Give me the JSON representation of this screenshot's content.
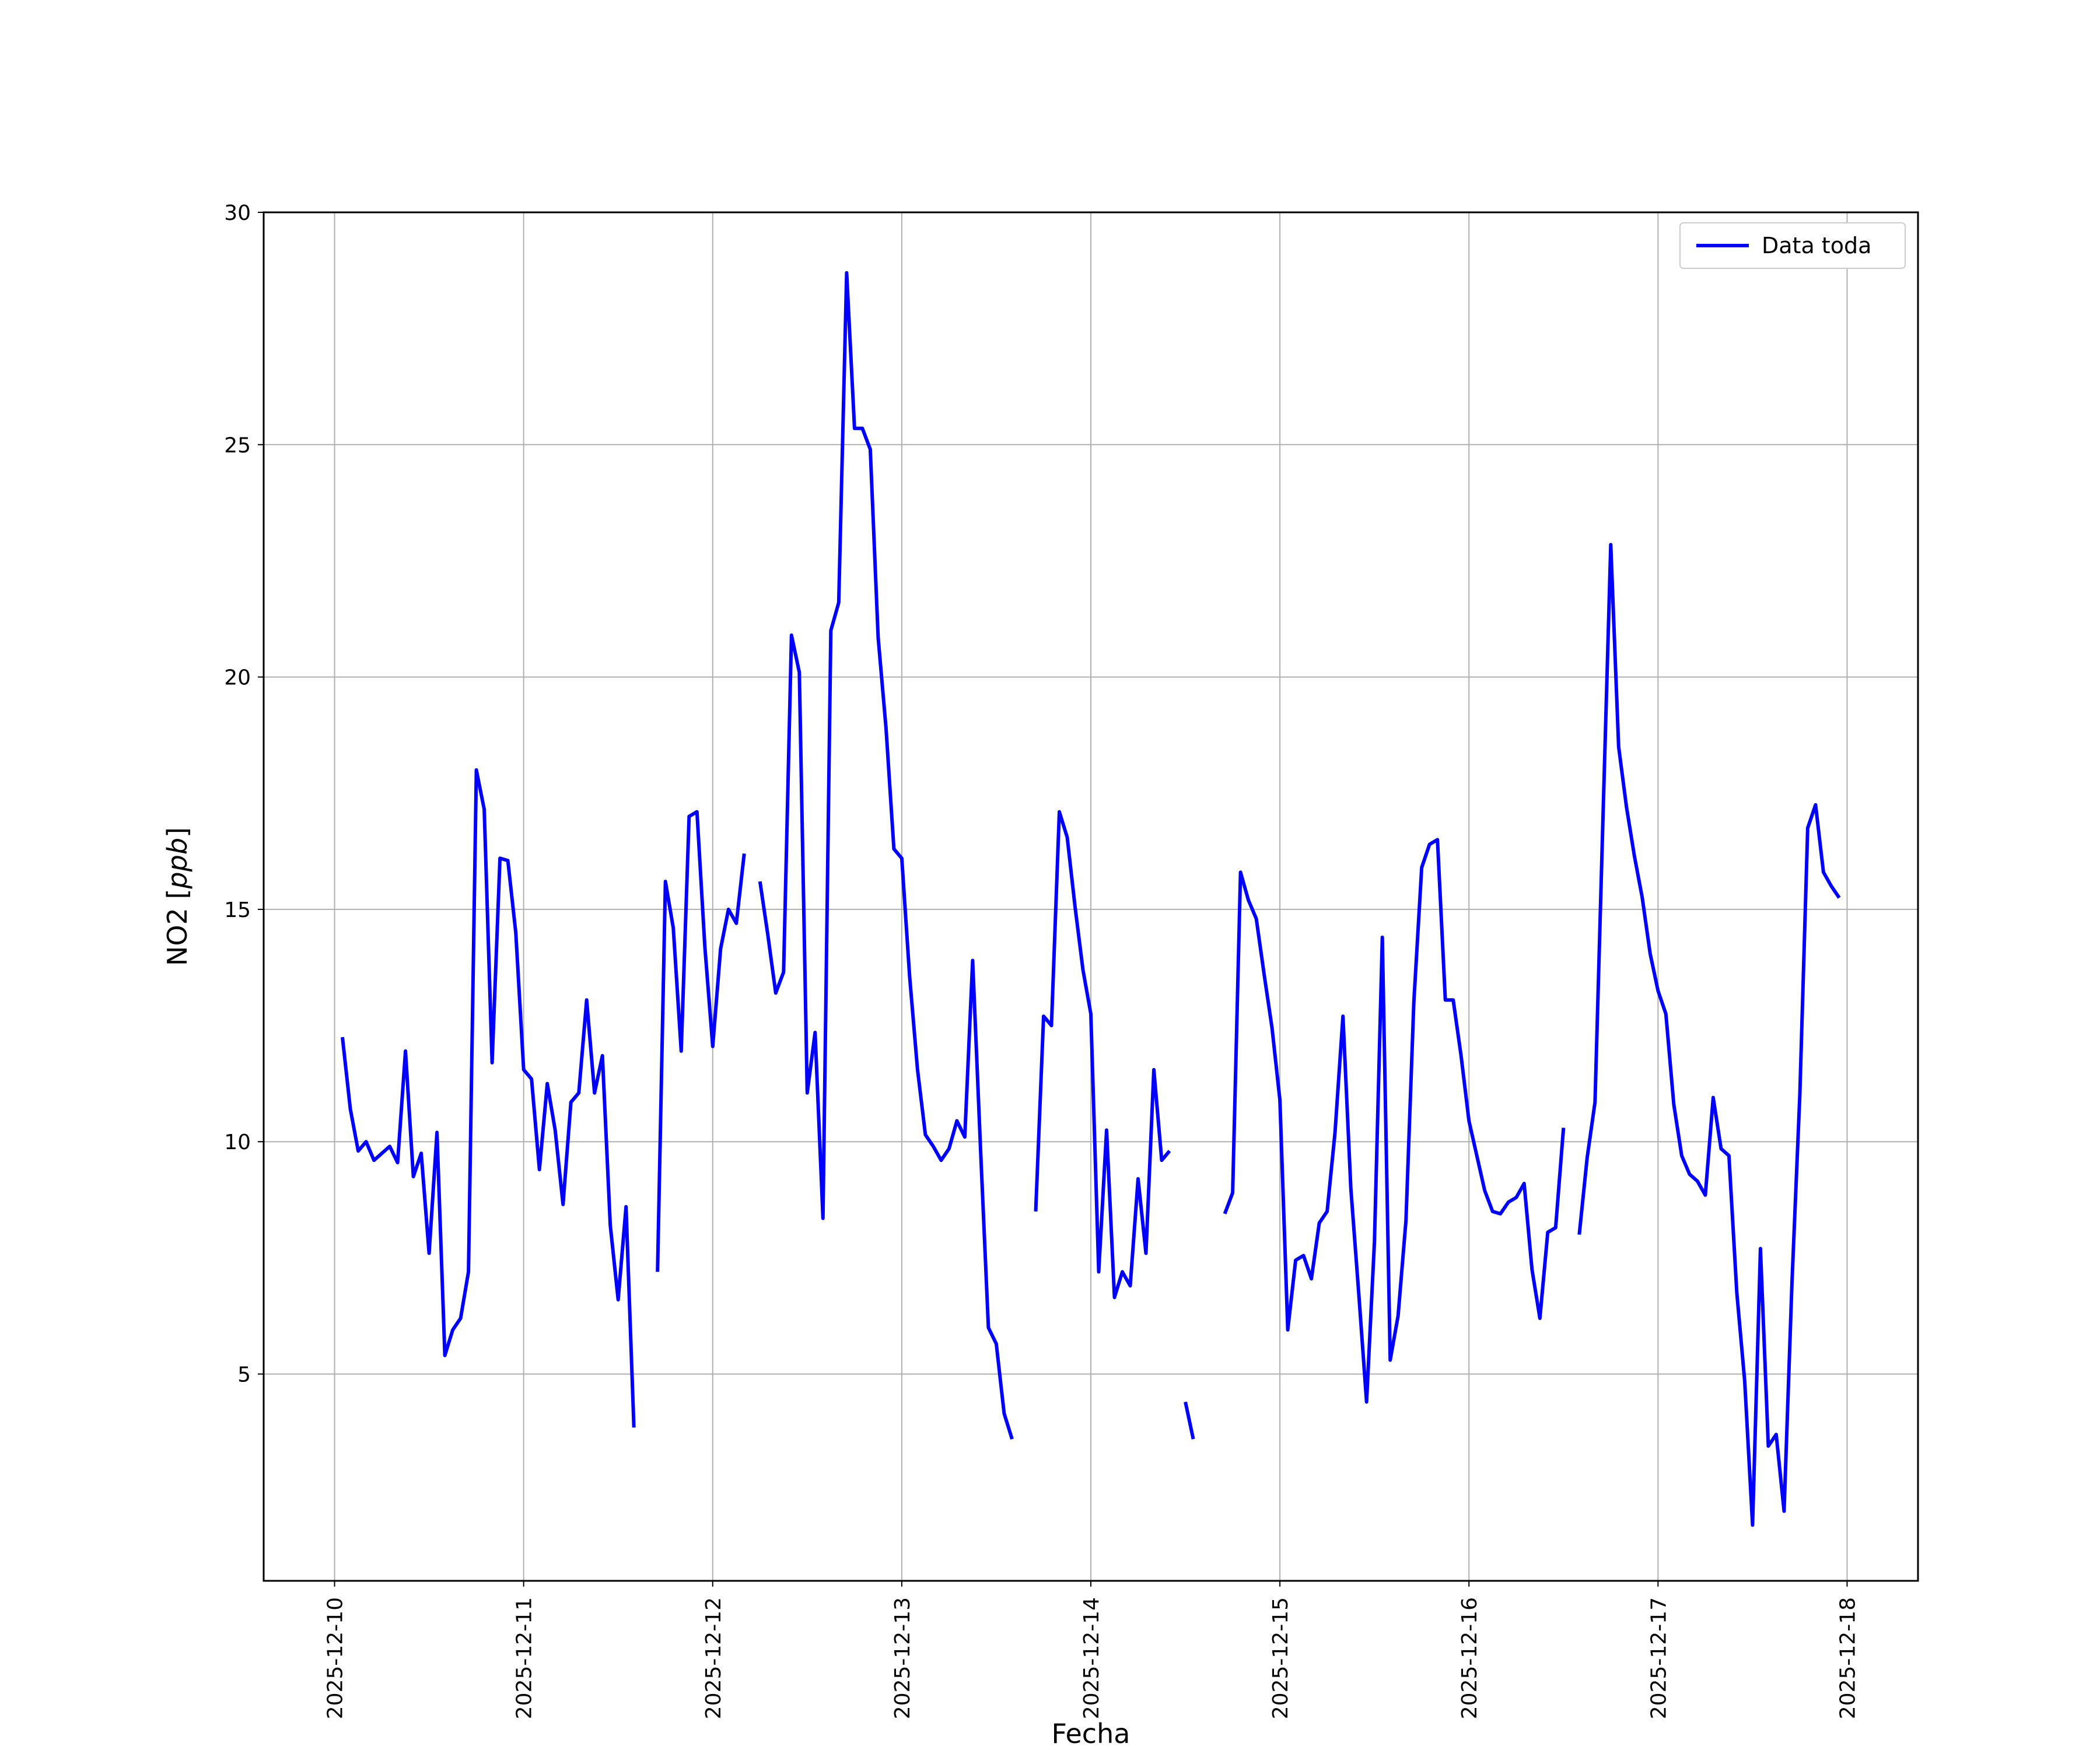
{
  "chart_data": {
    "type": "line",
    "title": "",
    "xlabel": "Fecha",
    "ylabel": "NO2 [ppb]",
    "ylabel_parts": {
      "plain": "NO2 [",
      "italic": "ppb",
      "close": "]"
    },
    "grid": true,
    "legend_position": "top-right",
    "x_unit": "date",
    "xlim": [
      "2025-12-09T15:00",
      "2025-12-18T09:00"
    ],
    "ylim": [
      0.55,
      30
    ],
    "x_ticks": [
      "2025-12-10",
      "2025-12-11",
      "2025-12-12",
      "2025-12-13",
      "2025-12-14",
      "2025-12-15",
      "2025-12-16",
      "2025-12-17",
      "2025-12-18"
    ],
    "y_ticks": [
      5,
      10,
      15,
      20,
      25,
      30
    ],
    "series": [
      {
        "name": "Data toda",
        "color": "#0000ff",
        "x": [
          "2025-12-10T01:00",
          "2025-12-10T02:00",
          "2025-12-10T03:00",
          "2025-12-10T04:00",
          "2025-12-10T05:00",
          "2025-12-10T06:00",
          "2025-12-10T07:00",
          "2025-12-10T08:00",
          "2025-12-10T09:00",
          "2025-12-10T10:00",
          "2025-12-10T11:00",
          "2025-12-10T12:00",
          "2025-12-10T13:00",
          "2025-12-10T14:00",
          "2025-12-10T15:00",
          "2025-12-10T16:00",
          "2025-12-10T17:00",
          "2025-12-10T18:00",
          "2025-12-10T19:00",
          "2025-12-10T20:00",
          "2025-12-10T21:00",
          "2025-12-10T22:00",
          "2025-12-10T23:00",
          "2025-12-11T00:00",
          "2025-12-11T01:00",
          "2025-12-11T02:00",
          "2025-12-11T03:00",
          "2025-12-11T04:00",
          "2025-12-11T05:00",
          "2025-12-11T06:00",
          "2025-12-11T07:00",
          "2025-12-11T08:00",
          "2025-12-11T09:00",
          "2025-12-11T10:00",
          "2025-12-11T11:00",
          "2025-12-11T12:00",
          "2025-12-11T13:00",
          "2025-12-11T14:00",
          "2025-12-11T15:00",
          "2025-12-11T16:00",
          "2025-12-11T17:00",
          "2025-12-11T18:00",
          "2025-12-11T19:00",
          "2025-12-11T20:00",
          "2025-12-11T21:00",
          "2025-12-11T22:00",
          "2025-12-11T23:00",
          "2025-12-12T00:00",
          "2025-12-12T01:00",
          "2025-12-12T02:00",
          "2025-12-12T03:00",
          "2025-12-12T04:00",
          "2025-12-12T05:00",
          "2025-12-12T06:00",
          "2025-12-12T07:00",
          "2025-12-12T08:00",
          "2025-12-12T09:00",
          "2025-12-12T10:00",
          "2025-12-12T11:00",
          "2025-12-12T12:00",
          "2025-12-12T13:00",
          "2025-12-12T14:00",
          "2025-12-12T15:00",
          "2025-12-12T16:00",
          "2025-12-12T17:00",
          "2025-12-12T18:00",
          "2025-12-12T19:00",
          "2025-12-12T20:00",
          "2025-12-12T21:00",
          "2025-12-12T22:00",
          "2025-12-12T23:00",
          "2025-12-13T00:00",
          "2025-12-13T01:00",
          "2025-12-13T02:00",
          "2025-12-13T03:00",
          "2025-12-13T04:00",
          "2025-12-13T05:00",
          "2025-12-13T06:00",
          "2025-12-13T07:00",
          "2025-12-13T08:00",
          "2025-12-13T09:00",
          "2025-12-13T10:00",
          "2025-12-13T11:00",
          "2025-12-13T12:00",
          "2025-12-13T13:00",
          "2025-12-13T14:00",
          "2025-12-13T15:00",
          "2025-12-13T16:00",
          "2025-12-13T17:00",
          "2025-12-13T18:00",
          "2025-12-13T19:00",
          "2025-12-13T20:00",
          "2025-12-13T21:00",
          "2025-12-13T22:00",
          "2025-12-13T23:00",
          "2025-12-14T00:00",
          "2025-12-14T01:00",
          "2025-12-14T02:00",
          "2025-12-14T03:00",
          "2025-12-14T04:00",
          "2025-12-14T05:00",
          "2025-12-14T06:00",
          "2025-12-14T07:00",
          "2025-12-14T08:00",
          "2025-12-14T09:00",
          "2025-12-14T10:00",
          "2025-12-14T11:00",
          "2025-12-14T12:00",
          "2025-12-14T13:00",
          "2025-12-14T14:00",
          "2025-12-14T15:00",
          "2025-12-14T16:00",
          "2025-12-14T17:00",
          "2025-12-14T18:00",
          "2025-12-14T19:00",
          "2025-12-14T20:00",
          "2025-12-14T21:00",
          "2025-12-14T22:00",
          "2025-12-14T23:00",
          "2025-12-15T00:00",
          "2025-12-15T01:00",
          "2025-12-15T02:00",
          "2025-12-15T03:00",
          "2025-12-15T04:00",
          "2025-12-15T05:00",
          "2025-12-15T06:00",
          "2025-12-15T07:00",
          "2025-12-15T08:00",
          "2025-12-15T09:00",
          "2025-12-15T10:00",
          "2025-12-15T11:00",
          "2025-12-15T12:00",
          "2025-12-15T13:00",
          "2025-12-15T14:00",
          "2025-12-15T15:00",
          "2025-12-15T16:00",
          "2025-12-15T17:00",
          "2025-12-15T18:00",
          "2025-12-15T19:00",
          "2025-12-15T20:00",
          "2025-12-15T21:00",
          "2025-12-15T22:00",
          "2025-12-15T23:00",
          "2025-12-16T00:00",
          "2025-12-16T01:00",
          "2025-12-16T02:00",
          "2025-12-16T03:00",
          "2025-12-16T04:00",
          "2025-12-16T05:00",
          "2025-12-16T06:00",
          "2025-12-16T07:00",
          "2025-12-16T08:00",
          "2025-12-16T09:00",
          "2025-12-16T10:00",
          "2025-12-16T11:00",
          "2025-12-16T12:00",
          "2025-12-16T13:00",
          "2025-12-16T14:00",
          "2025-12-16T15:00",
          "2025-12-16T16:00",
          "2025-12-16T17:00",
          "2025-12-16T18:00",
          "2025-12-16T19:00",
          "2025-12-16T20:00",
          "2025-12-16T21:00",
          "2025-12-16T22:00",
          "2025-12-16T23:00",
          "2025-12-17T00:00",
          "2025-12-17T01:00",
          "2025-12-17T02:00",
          "2025-12-17T03:00",
          "2025-12-17T04:00",
          "2025-12-17T05:00",
          "2025-12-17T06:00",
          "2025-12-17T07:00",
          "2025-12-17T08:00",
          "2025-12-17T09:00",
          "2025-12-17T10:00",
          "2025-12-17T11:00",
          "2025-12-17T12:00",
          "2025-12-17T13:00",
          "2025-12-17T14:00",
          "2025-12-17T15:00",
          "2025-12-17T16:00",
          "2025-12-17T17:00",
          "2025-12-17T18:00",
          "2025-12-17T19:00",
          "2025-12-17T20:00",
          "2025-12-17T21:00",
          "2025-12-17T22:00",
          "2025-12-17T23:00",
          "2025-12-18T00:00"
        ],
        "values": [
          12.25,
          10.7,
          9.8,
          10.0,
          9.6,
          9.75,
          9.9,
          9.55,
          11.95,
          9.25,
          9.75,
          7.6,
          10.2,
          5.4,
          5.95,
          6.2,
          7.2,
          18.0,
          17.15,
          11.7,
          16.1,
          16.05,
          14.5,
          11.55,
          11.35,
          9.4,
          11.25,
          10.25,
          8.65,
          10.85,
          11.05,
          13.05,
          11.05,
          11.85,
          8.2,
          6.6,
          8.6,
          3.85,
          null,
          null,
          7.2,
          15.6,
          14.6,
          11.95,
          17.0,
          17.1,
          14.2,
          12.05,
          14.15,
          15.0,
          14.7,
          16.2,
          null,
          15.6,
          14.45,
          13.2,
          13.65,
          20.9,
          20.1,
          11.05,
          12.35,
          8.35,
          21.0,
          21.6,
          28.7,
          25.35,
          25.35,
          24.9,
          20.85,
          18.9,
          16.3,
          16.1,
          13.55,
          11.55,
          10.15,
          9.9,
          9.6,
          9.85,
          10.45,
          10.1,
          13.9,
          9.85,
          6.0,
          5.65,
          4.15,
          3.6,
          null,
          null,
          8.5,
          12.7,
          12.5,
          17.1,
          16.55,
          15.05,
          13.7,
          12.75,
          7.2,
          10.25,
          6.65,
          7.2,
          6.9,
          9.2,
          7.6,
          11.55,
          9.6,
          9.8,
          null,
          4.4,
          3.6,
          null,
          null,
          null,
          8.45,
          8.9,
          15.8,
          15.2,
          14.8,
          13.6,
          12.45,
          10.9,
          5.95,
          7.45,
          7.55,
          7.05,
          8.25,
          8.5,
          10.2,
          12.7,
          9.0,
          6.75,
          4.4,
          7.85,
          14.4,
          5.3,
          6.25,
          8.3,
          13.0,
          15.9,
          16.4,
          16.5,
          13.05,
          13.05,
          11.85,
          10.45,
          9.7,
          8.95,
          8.5,
          8.45,
          8.7,
          8.8,
          9.1,
          7.25,
          6.2,
          8.05,
          8.15,
          10.3,
          null,
          8.0,
          9.65,
          10.85,
          16.9,
          22.85,
          18.5,
          17.2,
          16.15,
          15.25,
          14.05,
          13.25,
          12.75,
          10.8,
          9.7,
          9.3,
          9.15,
          8.85,
          10.95,
          9.85,
          9.7,
          6.75,
          4.85,
          1.75,
          7.7,
          3.45,
          3.7,
          2.05,
          6.95,
          11.0,
          16.75,
          17.25,
          15.8,
          15.5,
          15.25,
          null
        ]
      }
    ]
  }
}
